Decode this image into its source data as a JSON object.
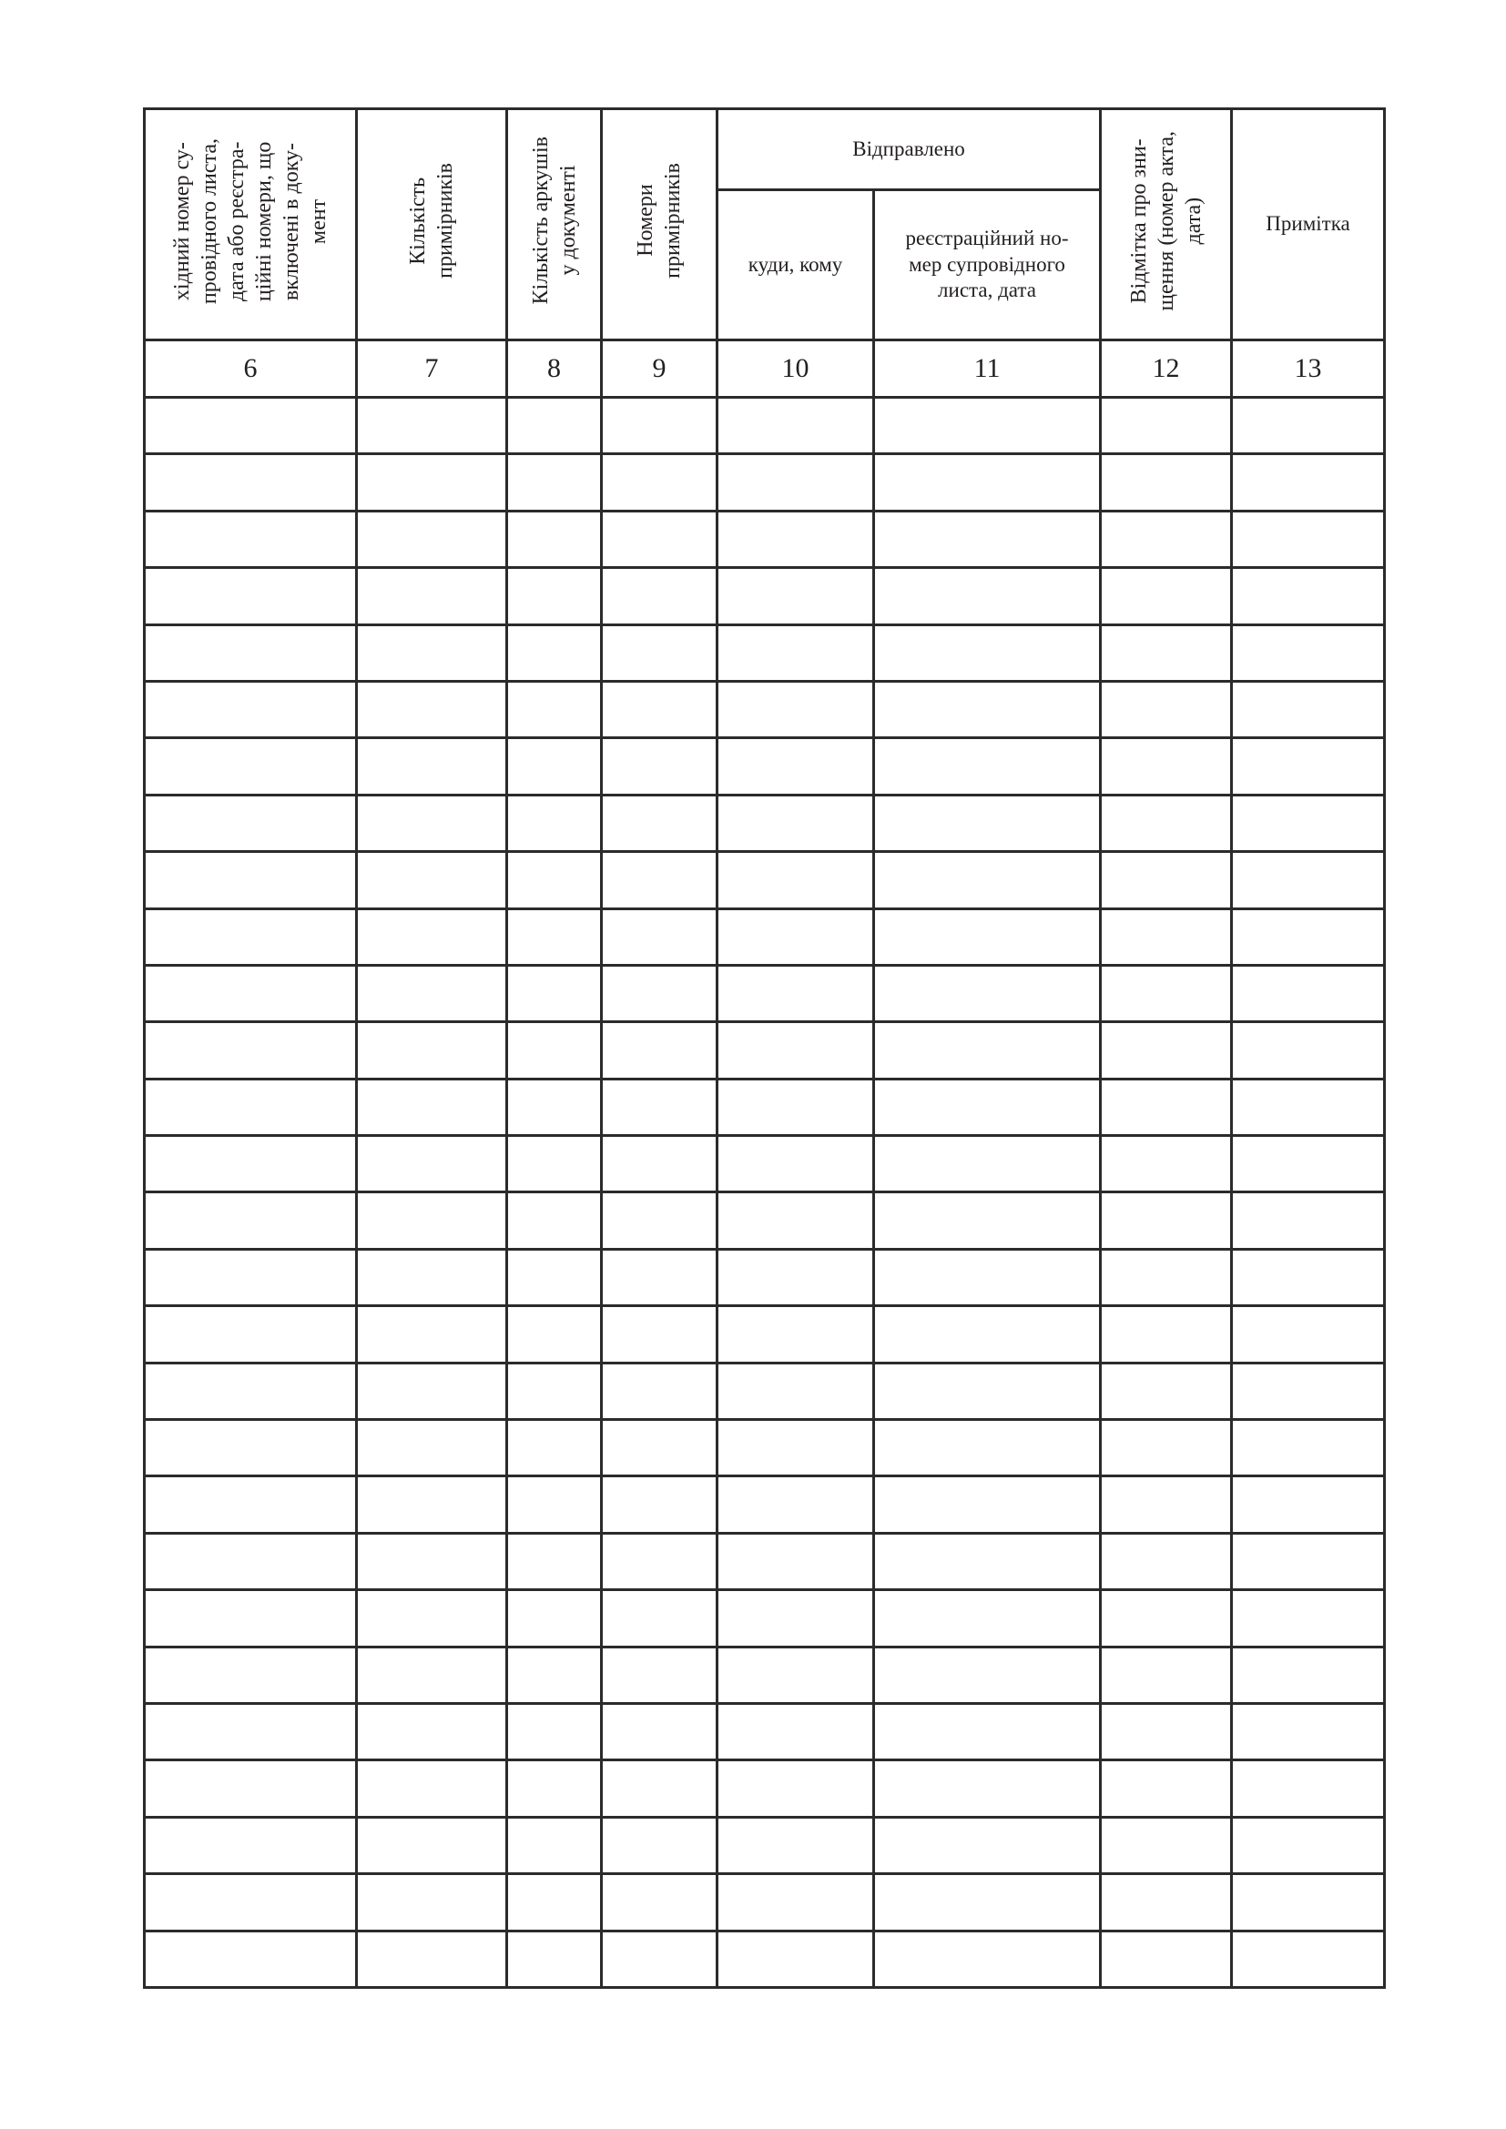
{
  "table": {
    "headers": {
      "col6": "хідний номер су-провідного листа, дата або реєстра-ційні номери, що включені в доку-мент",
      "col6_lines": [
        "хідний номер су-",
        "провідного листа,",
        "дата або реєстра-",
        "ційні номери, що",
        "включені в доку-",
        "мент"
      ],
      "col7_lines": [
        "Кількість",
        "примірників"
      ],
      "col8_lines": [
        "Кількість аркушів",
        "у документі"
      ],
      "col9_lines": [
        "Номери",
        "примірників"
      ],
      "sent_group": "Відправлено",
      "col10": "куди, кому",
      "col11_lines": [
        "реєстраційний но-",
        "мер супровідного",
        "листа, дата"
      ],
      "col12_lines": [
        "Відмітка про зни-",
        "щення (номер акта,",
        "дата)"
      ],
      "col13": "Примітка"
    },
    "column_numbers": [
      "6",
      "7",
      "8",
      "9",
      "10",
      "11",
      "12",
      "13"
    ],
    "empty_row_count": 28
  }
}
